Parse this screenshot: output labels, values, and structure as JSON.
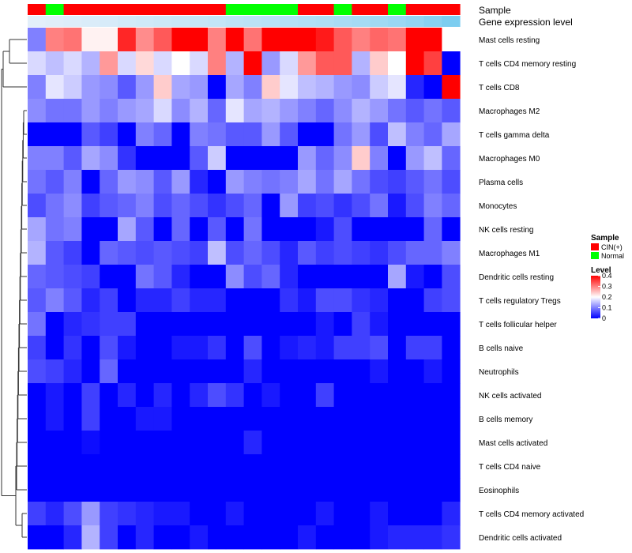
{
  "chart_data": {
    "type": "heatmap",
    "title": "",
    "annotations": {
      "sample_track_label": "Sample",
      "expression_track_label": "Gene expression level"
    },
    "columns": 24,
    "sample_groups": [
      "CIN(+)",
      "Normal",
      "CIN(+)",
      "CIN(+)",
      "CIN(+)",
      "CIN(+)",
      "CIN(+)",
      "CIN(+)",
      "CIN(+)",
      "CIN(+)",
      "CIN(+)",
      "Normal",
      "Normal",
      "Normal",
      "Normal",
      "CIN(+)",
      "CIN(+)",
      "Normal",
      "CIN(+)",
      "CIN(+)",
      "Normal",
      "CIN(+)",
      "CIN(+)",
      "CIN(+)"
    ],
    "gene_expression_level": [
      0.02,
      0.04,
      0.06,
      0.08,
      0.1,
      0.13,
      0.15,
      0.17,
      0.19,
      0.21,
      0.23,
      0.26,
      0.28,
      0.3,
      0.33,
      0.35,
      0.37,
      0.4,
      0.43,
      0.46,
      0.5,
      0.55,
      0.62,
      0.7
    ],
    "rows": [
      {
        "label": "Mast cells resting",
        "values": [
          0.1,
          0.3,
          0.31,
          0.21,
          0.21,
          0.37,
          0.29,
          0.33,
          0.4,
          0.4,
          0.3,
          0.4,
          0.31,
          0.4,
          0.4,
          0.4,
          0.38,
          0.33,
          0.3,
          0.32,
          0.31,
          0.4,
          0.4,
          0.2
        ]
      },
      {
        "label": "T cells CD4 memory resting",
        "values": [
          0.17,
          0.15,
          0.17,
          0.14,
          0.28,
          0.17,
          0.23,
          0.17,
          0.2,
          0.17,
          0.3,
          0.14,
          0.4,
          0.12,
          0.17,
          0.28,
          0.33,
          0.33,
          0.14,
          0.24,
          0.2,
          0.4,
          0.35,
          0.0
        ]
      },
      {
        "label": "T cells CD8",
        "values": [
          0.1,
          0.18,
          0.16,
          0.12,
          0.11,
          0.07,
          0.12,
          0.24,
          0.13,
          0.12,
          0.0,
          0.13,
          0.1,
          0.24,
          0.18,
          0.15,
          0.14,
          0.12,
          0.11,
          0.16,
          0.18,
          0.03,
          0.0,
          0.4
        ]
      },
      {
        "label": "Macrophages M2",
        "values": [
          0.11,
          0.09,
          0.09,
          0.12,
          0.1,
          0.12,
          0.13,
          0.17,
          0.11,
          0.14,
          0.08,
          0.18,
          0.13,
          0.14,
          0.12,
          0.1,
          0.08,
          0.11,
          0.14,
          0.12,
          0.09,
          0.07,
          0.09,
          0.07
        ]
      },
      {
        "label": "T cells gamma delta",
        "values": [
          0.0,
          0.0,
          0.0,
          0.07,
          0.05,
          0.0,
          0.1,
          0.08,
          0.0,
          0.1,
          0.09,
          0.07,
          0.07,
          0.12,
          0.07,
          0.0,
          0.0,
          0.09,
          0.12,
          0.06,
          0.15,
          0.1,
          0.08,
          0.13
        ]
      },
      {
        "label": "Macrophages M0",
        "values": [
          0.1,
          0.1,
          0.07,
          0.13,
          0.11,
          0.04,
          0.0,
          0.0,
          0.0,
          0.07,
          0.16,
          0.0,
          0.0,
          0.0,
          0.0,
          0.12,
          0.08,
          0.11,
          0.24,
          0.1,
          0.0,
          0.12,
          0.15,
          0.08
        ]
      },
      {
        "label": "Plasma cells",
        "values": [
          0.09,
          0.07,
          0.1,
          0.0,
          0.08,
          0.12,
          0.11,
          0.07,
          0.12,
          0.03,
          0.0,
          0.12,
          0.1,
          0.09,
          0.1,
          0.13,
          0.09,
          0.13,
          0.09,
          0.06,
          0.05,
          0.07,
          0.09,
          0.06
        ]
      },
      {
        "label": "Monocytes",
        "values": [
          0.06,
          0.09,
          0.11,
          0.05,
          0.07,
          0.08,
          0.1,
          0.06,
          0.08,
          0.06,
          0.04,
          0.06,
          0.08,
          0.0,
          0.12,
          0.05,
          0.06,
          0.04,
          0.06,
          0.09,
          0.02,
          0.06,
          0.1,
          0.08
        ]
      },
      {
        "label": "NK cells resting",
        "values": [
          0.13,
          0.09,
          0.1,
          0.0,
          0.0,
          0.13,
          0.07,
          0.0,
          0.08,
          0.0,
          0.07,
          0.0,
          0.09,
          0.0,
          0.0,
          0.0,
          0.02,
          0.06,
          0.0,
          0.0,
          0.0,
          0.0,
          0.08,
          0.0
        ]
      },
      {
        "label": "Macrophages M1",
        "values": [
          0.14,
          0.07,
          0.05,
          0.0,
          0.08,
          0.07,
          0.06,
          0.07,
          0.06,
          0.05,
          0.15,
          0.06,
          0.08,
          0.06,
          0.03,
          0.07,
          0.05,
          0.06,
          0.05,
          0.04,
          0.06,
          0.08,
          0.08,
          0.1
        ]
      },
      {
        "label": "Dendritic cells resting",
        "values": [
          0.08,
          0.07,
          0.06,
          0.05,
          0.0,
          0.0,
          0.09,
          0.07,
          0.03,
          0.0,
          0.0,
          0.11,
          0.06,
          0.08,
          0.03,
          0.0,
          0.0,
          0.0,
          0.0,
          0.0,
          0.13,
          0.02,
          0.0,
          0.06
        ]
      },
      {
        "label": "T cells regulatory  Tregs",
        "values": [
          0.07,
          0.1,
          0.07,
          0.03,
          0.05,
          0.0,
          0.03,
          0.03,
          0.05,
          0.03,
          0.03,
          0.0,
          0.0,
          0.0,
          0.04,
          0.02,
          0.06,
          0.06,
          0.04,
          0.03,
          0.0,
          0.0,
          0.05,
          0.06
        ]
      },
      {
        "label": "T cells follicular helper",
        "values": [
          0.09,
          0.0,
          0.03,
          0.04,
          0.05,
          0.05,
          0.0,
          0.0,
          0.0,
          0.0,
          0.0,
          0.0,
          0.0,
          0.0,
          0.0,
          0.0,
          0.02,
          0.0,
          0.05,
          0.02,
          0.0,
          0.0,
          0.0,
          0.0
        ]
      },
      {
        "label": "B cells naive",
        "values": [
          0.05,
          0.0,
          0.04,
          0.0,
          0.06,
          0.02,
          0.0,
          0.0,
          0.02,
          0.02,
          0.04,
          0.0,
          0.06,
          0.0,
          0.02,
          0.03,
          0.02,
          0.05,
          0.05,
          0.06,
          0.0,
          0.05,
          0.05,
          0.0
        ]
      },
      {
        "label": "Neutrophils",
        "values": [
          0.06,
          0.05,
          0.03,
          0.0,
          0.08,
          0.0,
          0.0,
          0.0,
          0.0,
          0.0,
          0.0,
          0.0,
          0.03,
          0.0,
          0.0,
          0.0,
          0.0,
          0.0,
          0.0,
          0.02,
          0.0,
          0.0,
          0.02,
          0.0
        ]
      },
      {
        "label": "NK cells activated",
        "values": [
          0.0,
          0.02,
          0.0,
          0.05,
          0.0,
          0.03,
          0.0,
          0.03,
          0.0,
          0.03,
          0.06,
          0.04,
          0.0,
          0.02,
          0.0,
          0.0,
          0.05,
          0.0,
          0.0,
          0.0,
          0.0,
          0.0,
          0.0,
          0.0
        ]
      },
      {
        "label": "B cells memory",
        "values": [
          0.0,
          0.02,
          0.0,
          0.05,
          0.0,
          0.0,
          0.02,
          0.02,
          0.0,
          0.0,
          0.0,
          0.0,
          0.0,
          0.0,
          0.0,
          0.0,
          0.0,
          0.0,
          0.0,
          0.0,
          0.0,
          0.0,
          0.0,
          0.0
        ]
      },
      {
        "label": "Mast cells activated",
        "values": [
          0.0,
          0.0,
          0.0,
          0.01,
          0.0,
          0.0,
          0.0,
          0.0,
          0.0,
          0.0,
          0.0,
          0.0,
          0.03,
          0.0,
          0.0,
          0.0,
          0.0,
          0.0,
          0.0,
          0.0,
          0.0,
          0.0,
          0.0,
          0.0
        ]
      },
      {
        "label": "T cells CD4 naive",
        "values": [
          0.0,
          0.0,
          0.0,
          0.0,
          0.0,
          0.0,
          0.0,
          0.0,
          0.0,
          0.0,
          0.0,
          0.0,
          0.0,
          0.0,
          0.0,
          0.0,
          0.0,
          0.0,
          0.0,
          0.0,
          0.0,
          0.0,
          0.0,
          0.0
        ]
      },
      {
        "label": "Eosinophils",
        "values": [
          0.0,
          0.0,
          0.0,
          0.0,
          0.0,
          0.0,
          0.0,
          0.0,
          0.0,
          0.0,
          0.0,
          0.0,
          0.0,
          0.0,
          0.0,
          0.0,
          0.0,
          0.0,
          0.0,
          0.0,
          0.0,
          0.0,
          0.0,
          0.0
        ]
      },
      {
        "label": "T cells CD4 memory activated",
        "values": [
          0.05,
          0.03,
          0.06,
          0.12,
          0.05,
          0.04,
          0.03,
          0.02,
          0.02,
          0.0,
          0.0,
          0.02,
          0.0,
          0.0,
          0.0,
          0.0,
          0.02,
          0.0,
          0.0,
          0.02,
          0.0,
          0.0,
          0.0,
          0.03
        ]
      },
      {
        "label": "Dendritic cells activated",
        "values": [
          0.0,
          0.0,
          0.03,
          0.14,
          0.05,
          0.0,
          0.03,
          0.0,
          0.0,
          0.02,
          0.0,
          0.0,
          0.0,
          0.0,
          0.0,
          0.02,
          0.0,
          0.0,
          0.0,
          0.02,
          0.03,
          0.03,
          0.03,
          0.04
        ]
      }
    ],
    "colorscale": {
      "min": 0,
      "max": 0.4,
      "low": "#0000FF",
      "mid": "#FFFFFF",
      "high": "#FF0000"
    },
    "legend": {
      "sample": {
        "title": "Sample",
        "items": [
          {
            "label": "CIN(+)",
            "color": "#FF0000"
          },
          {
            "label": "Normal",
            "color": "#00FF00"
          }
        ]
      },
      "level": {
        "title": "Level",
        "ticks": [
          {
            "label": "0.4",
            "value": 0.4
          },
          {
            "label": "0.3",
            "value": 0.3
          },
          {
            "label": "0.2",
            "value": 0.2
          },
          {
            "label": "0.1",
            "value": 0.1
          },
          {
            "label": "0",
            "value": 0
          }
        ]
      },
      "position": "right"
    }
  }
}
